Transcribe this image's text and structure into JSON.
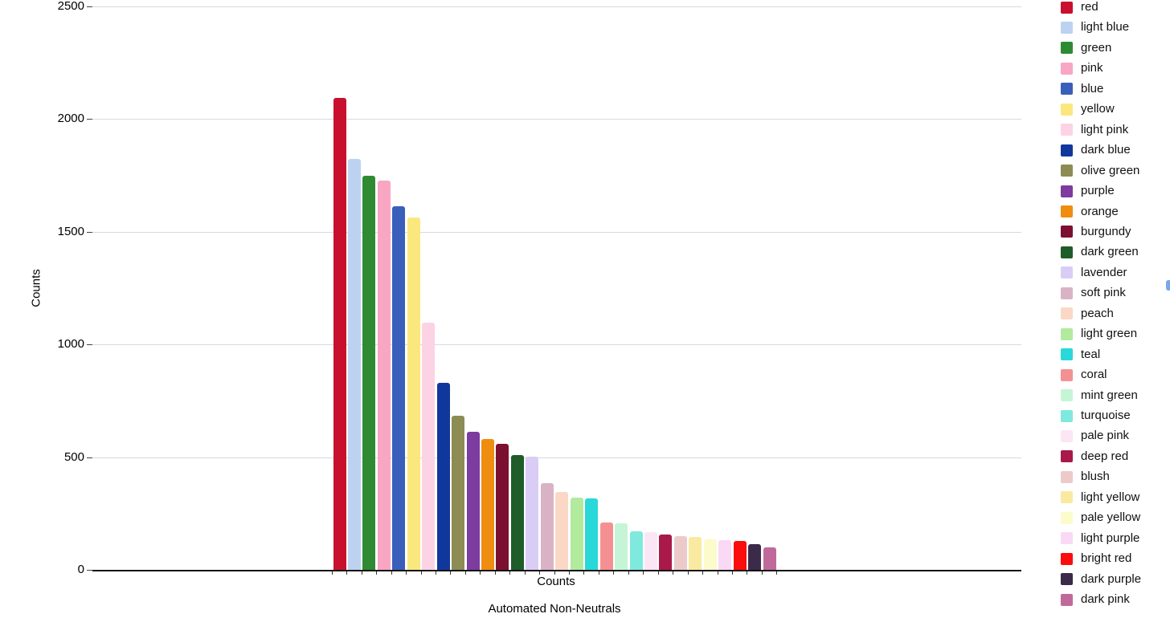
{
  "figure": {
    "background_color": "#ffffff",
    "grid_color": "#d9d9d9",
    "axis_line_color": "#111111",
    "tick_color": "#333333",
    "text_color": "#000000",
    "edge_artifact_color": "#7ba6ec"
  },
  "chart_data": {
    "type": "bar",
    "title": "",
    "xlabel": "Automated Non-Neutrals",
    "ylabel": "Counts",
    "category": "Counts",
    "categories": [
      "Counts"
    ],
    "ylim": [
      0,
      2500
    ],
    "yticks": [
      0,
      500,
      1000,
      1500,
      2000,
      2500
    ],
    "ytick_labels": [
      "0",
      "500",
      "1000",
      "1500",
      "2000",
      "2500"
    ],
    "grid": true,
    "legend_position": "right",
    "series": [
      {
        "name": "red",
        "color": "#c8102e",
        "value": 2095
      },
      {
        "name": "light blue",
        "color": "#bcd2f0",
        "value": 1825
      },
      {
        "name": "green",
        "color": "#2e8b33",
        "value": 1750
      },
      {
        "name": "pink",
        "color": "#f8a6c3",
        "value": 1727
      },
      {
        "name": "blue",
        "color": "#3a5fba",
        "value": 1612
      },
      {
        "name": "yellow",
        "color": "#fae87e",
        "value": 1562
      },
      {
        "name": "light pink",
        "color": "#fbd3e4",
        "value": 1098
      },
      {
        "name": "dark blue",
        "color": "#10389c",
        "value": 830
      },
      {
        "name": "olive green",
        "color": "#8c8c54",
        "value": 683
      },
      {
        "name": "purple",
        "color": "#7c3ca0",
        "value": 613
      },
      {
        "name": "orange",
        "color": "#ef8d10",
        "value": 581
      },
      {
        "name": "burgundy",
        "color": "#7c1030",
        "value": 560
      },
      {
        "name": "dark green",
        "color": "#1e5c2a",
        "value": 510
      },
      {
        "name": "lavender",
        "color": "#dacdf5",
        "value": 501
      },
      {
        "name": "soft pink",
        "color": "#d9b3c5",
        "value": 384
      },
      {
        "name": "peach",
        "color": "#fad8c5",
        "value": 346
      },
      {
        "name": "light green",
        "color": "#b2ea9e",
        "value": 319
      },
      {
        "name": "teal",
        "color": "#29d8d8",
        "value": 317
      },
      {
        "name": "coral",
        "color": "#f59092",
        "value": 211
      },
      {
        "name": "mint green",
        "color": "#c5f5d6",
        "value": 205
      },
      {
        "name": "turquoise",
        "color": "#7fe9de",
        "value": 171
      },
      {
        "name": "pale pink",
        "color": "#fbe6f5",
        "value": 166
      },
      {
        "name": "deep red",
        "color": "#a91949",
        "value": 158
      },
      {
        "name": "blush",
        "color": "#edcaca",
        "value": 148
      },
      {
        "name": "light yellow",
        "color": "#fae9a0",
        "value": 146
      },
      {
        "name": "pale yellow",
        "color": "#fbfbcb",
        "value": 135
      },
      {
        "name": "light purple",
        "color": "#fad9f5",
        "value": 130
      },
      {
        "name": "bright red",
        "color": "#fb0d0d",
        "value": 128
      },
      {
        "name": "dark purple",
        "color": "#3b2a49",
        "value": 113
      },
      {
        "name": "dark pink",
        "color": "#c06a9b",
        "value": 101
      }
    ]
  }
}
